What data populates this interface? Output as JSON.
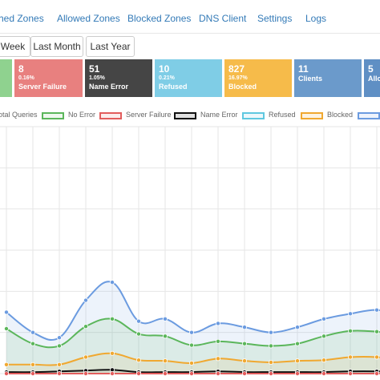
{
  "nav": {
    "items": [
      "hed Zones",
      "Allowed Zones",
      "Blocked Zones",
      "DNS Client",
      "Settings",
      "Logs"
    ]
  },
  "periods": [
    "Week",
    "Last Month",
    "Last Year"
  ],
  "tiles": [
    {
      "value": "",
      "percent": "",
      "label": "",
      "color": "#8fd28f"
    },
    {
      "value": "8",
      "percent": "0.16%",
      "label": "Server Failure",
      "color": "#e8807f"
    },
    {
      "value": "51",
      "percent": "1.05%",
      "label": "Name Error",
      "color": "#454545"
    },
    {
      "value": "10",
      "percent": "0.21%",
      "label": "Refused",
      "color": "#7fcde6"
    },
    {
      "value": "827",
      "percent": "16.97%",
      "label": "Blocked",
      "color": "#f6bb4a"
    },
    {
      "value": "11",
      "percent": "",
      "label": "Clients",
      "color": "#6b9acb"
    },
    {
      "value": "5",
      "percent": "",
      "label": "Allo",
      "color": "#5f8fc4"
    }
  ],
  "legend": [
    {
      "label": "otal Queries",
      "color": "#6b9be0",
      "fill": "#eef3fc"
    },
    {
      "label": "No Error",
      "color": "#5bb65b",
      "fill": "#eef8ee"
    },
    {
      "label": "Server Failure",
      "color": "#e25c5c",
      "fill": "#fcecec"
    },
    {
      "label": "Name Error",
      "color": "#111111",
      "fill": "#e0e0e0"
    },
    {
      "label": "Refused",
      "color": "#5fc8e0",
      "fill": "#ecf8fb"
    },
    {
      "label": "Blocked",
      "color": "#f0a830",
      "fill": "#fdf3e2"
    },
    {
      "label": "",
      "color": "#6b9be0",
      "fill": "#eef3fc"
    }
  ],
  "chart_data": {
    "type": "area",
    "ylim": [
      0,
      330
    ],
    "grid": true,
    "series": [
      {
        "name": "Total Queries",
        "color": "#6b9be0",
        "fill": "rgba(107,155,224,0.12)",
        "values": [
          82,
          55,
          48,
          98,
          122,
          70,
          73,
          55,
          67,
          62,
          55,
          62,
          73,
          80,
          85,
          78,
          85
        ]
      },
      {
        "name": "No Error",
        "color": "#5bb65b",
        "fill": "rgba(91,182,91,0.12)",
        "values": [
          60,
          40,
          37,
          63,
          73,
          53,
          50,
          38,
          43,
          40,
          37,
          40,
          50,
          57,
          56,
          52,
          60
        ]
      },
      {
        "name": "Blocked",
        "color": "#f0a830",
        "fill": "rgba(240,168,48,0.10)",
        "values": [
          12,
          12,
          12,
          22,
          27,
          18,
          17,
          14,
          20,
          17,
          15,
          17,
          18,
          22,
          22,
          18,
          20
        ]
      },
      {
        "name": "Name Error",
        "color": "#111111",
        "fill": "rgba(0,0,0,0.04)",
        "values": [
          2,
          2,
          3,
          4,
          5,
          2,
          2,
          2,
          3,
          2,
          2,
          2,
          2,
          3,
          3,
          2,
          2
        ]
      },
      {
        "name": "Server Failure",
        "color": "#e25c5c",
        "fill": "rgba(0,0,0,0)",
        "values": [
          0,
          0,
          0,
          0,
          0,
          0,
          0,
          0,
          0,
          0,
          0,
          0,
          0,
          0,
          0,
          0,
          0
        ]
      }
    ]
  }
}
